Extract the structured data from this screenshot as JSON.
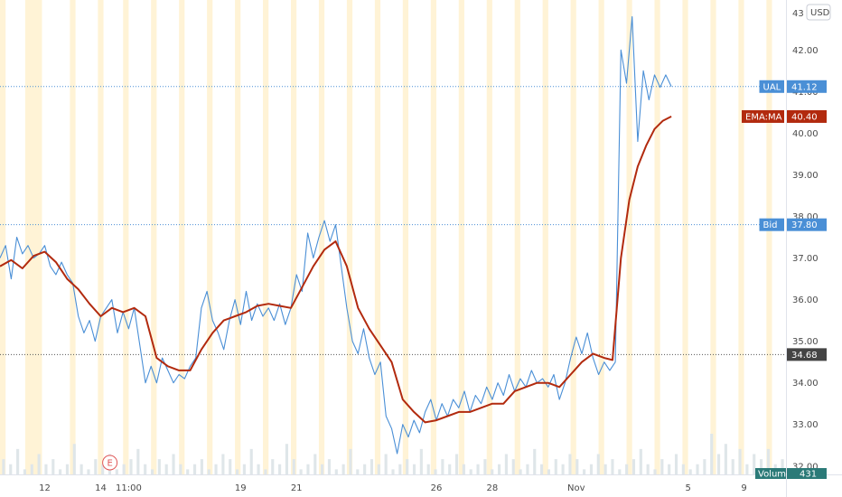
{
  "currency_button": "USD",
  "earnings_marker": "E",
  "chart_data": {
    "type": "line",
    "price_axis": {
      "ylim": [
        31.8,
        43.2
      ],
      "ticks": [
        32.0,
        33.0,
        34.0,
        35.0,
        36.0,
        37.0,
        38.0,
        39.0,
        40.0,
        41.0,
        42.0
      ],
      "top_partial_label": "43"
    },
    "time_axis": {
      "labels": [
        {
          "t": 12,
          "text": "12"
        },
        {
          "t": 14,
          "text": "14"
        },
        {
          "t": 15,
          "text": "11:00"
        },
        {
          "t": 19,
          "text": "19"
        },
        {
          "t": 21,
          "text": "21"
        },
        {
          "t": 26,
          "text": "26"
        },
        {
          "t": 28,
          "text": "28"
        },
        {
          "t": 31,
          "text": "Nov"
        },
        {
          "t": 35,
          "text": "5"
        },
        {
          "t": 37,
          "text": "9"
        }
      ],
      "range": [
        10.4,
        38.5
      ]
    },
    "session_bands": [
      {
        "from": 10.4,
        "to": 10.6
      },
      {
        "from": 11.3,
        "to": 11.9
      },
      {
        "from": 12.9,
        "to": 13.1
      },
      {
        "from": 13.9,
        "to": 14.1
      },
      {
        "from": 14.8,
        "to": 15.0
      },
      {
        "from": 15.8,
        "to": 16.0
      },
      {
        "from": 16.8,
        "to": 17.0
      },
      {
        "from": 17.8,
        "to": 18.0
      },
      {
        "from": 18.8,
        "to": 19.0
      },
      {
        "from": 19.8,
        "to": 20.0
      },
      {
        "from": 20.8,
        "to": 21.0
      },
      {
        "from": 21.8,
        "to": 22.0
      },
      {
        "from": 22.8,
        "to": 23.0
      },
      {
        "from": 23.8,
        "to": 24.0
      },
      {
        "from": 24.8,
        "to": 25.0
      },
      {
        "from": 25.8,
        "to": 26.0
      },
      {
        "from": 26.8,
        "to": 27.0
      },
      {
        "from": 27.8,
        "to": 28.0
      },
      {
        "from": 28.8,
        "to": 29.0
      },
      {
        "from": 29.8,
        "to": 30.0
      },
      {
        "from": 30.8,
        "to": 31.0
      },
      {
        "from": 31.8,
        "to": 32.0
      },
      {
        "from": 32.8,
        "to": 33.0
      },
      {
        "from": 33.8,
        "to": 34.0
      },
      {
        "from": 34.8,
        "to": 35.0
      },
      {
        "from": 35.8,
        "to": 36.0
      },
      {
        "from": 36.8,
        "to": 37.0
      },
      {
        "from": 37.8,
        "to": 38.0
      }
    ],
    "series": [
      {
        "name": "UAL",
        "color": "#4a8fd6",
        "values": [
          [
            10.4,
            37.0
          ],
          [
            10.6,
            37.3
          ],
          [
            10.8,
            36.5
          ],
          [
            11.0,
            37.5
          ],
          [
            11.2,
            37.1
          ],
          [
            11.4,
            37.3
          ],
          [
            11.6,
            37.0
          ],
          [
            11.8,
            37.1
          ],
          [
            12.0,
            37.3
          ],
          [
            12.2,
            36.8
          ],
          [
            12.4,
            36.6
          ],
          [
            12.6,
            36.9
          ],
          [
            12.8,
            36.6
          ],
          [
            13.0,
            36.4
          ],
          [
            13.2,
            35.6
          ],
          [
            13.4,
            35.2
          ],
          [
            13.6,
            35.5
          ],
          [
            13.8,
            35.0
          ],
          [
            14.0,
            35.6
          ],
          [
            14.2,
            35.8
          ],
          [
            14.4,
            36.0
          ],
          [
            14.6,
            35.2
          ],
          [
            14.8,
            35.7
          ],
          [
            15.0,
            35.3
          ],
          [
            15.2,
            35.8
          ],
          [
            15.4,
            34.9
          ],
          [
            15.6,
            34.0
          ],
          [
            15.8,
            34.4
          ],
          [
            16.0,
            34.0
          ],
          [
            16.2,
            34.6
          ],
          [
            16.4,
            34.3
          ],
          [
            16.6,
            34.0
          ],
          [
            16.8,
            34.2
          ],
          [
            17.0,
            34.1
          ],
          [
            17.2,
            34.4
          ],
          [
            17.4,
            34.6
          ],
          [
            17.6,
            35.8
          ],
          [
            17.8,
            36.2
          ],
          [
            18.0,
            35.5
          ],
          [
            18.2,
            35.2
          ],
          [
            18.4,
            34.8
          ],
          [
            18.6,
            35.5
          ],
          [
            18.8,
            36.0
          ],
          [
            19.0,
            35.4
          ],
          [
            19.2,
            36.2
          ],
          [
            19.4,
            35.5
          ],
          [
            19.6,
            35.9
          ],
          [
            19.8,
            35.6
          ],
          [
            20.0,
            35.8
          ],
          [
            20.2,
            35.5
          ],
          [
            20.4,
            35.9
          ],
          [
            20.6,
            35.4
          ],
          [
            20.8,
            35.8
          ],
          [
            21.0,
            36.6
          ],
          [
            21.2,
            36.2
          ],
          [
            21.4,
            37.6
          ],
          [
            21.6,
            37.0
          ],
          [
            21.8,
            37.5
          ],
          [
            22.0,
            37.9
          ],
          [
            22.2,
            37.4
          ],
          [
            22.4,
            37.8
          ],
          [
            22.6,
            36.8
          ],
          [
            22.8,
            35.8
          ],
          [
            23.0,
            35.0
          ],
          [
            23.2,
            34.7
          ],
          [
            23.4,
            35.3
          ],
          [
            23.6,
            34.6
          ],
          [
            23.8,
            34.2
          ],
          [
            24.0,
            34.5
          ],
          [
            24.2,
            33.2
          ],
          [
            24.4,
            32.9
          ],
          [
            24.6,
            32.3
          ],
          [
            24.8,
            33.0
          ],
          [
            25.0,
            32.7
          ],
          [
            25.2,
            33.1
          ],
          [
            25.4,
            32.8
          ],
          [
            25.6,
            33.3
          ],
          [
            25.8,
            33.6
          ],
          [
            26.0,
            33.1
          ],
          [
            26.2,
            33.5
          ],
          [
            26.4,
            33.2
          ],
          [
            26.6,
            33.6
          ],
          [
            26.8,
            33.4
          ],
          [
            27.0,
            33.8
          ],
          [
            27.2,
            33.3
          ],
          [
            27.4,
            33.7
          ],
          [
            27.6,
            33.5
          ],
          [
            27.8,
            33.9
          ],
          [
            28.0,
            33.6
          ],
          [
            28.2,
            34.0
          ],
          [
            28.4,
            33.7
          ],
          [
            28.6,
            34.2
          ],
          [
            28.8,
            33.8
          ],
          [
            29.0,
            34.1
          ],
          [
            29.2,
            33.9
          ],
          [
            29.4,
            34.3
          ],
          [
            29.6,
            34.0
          ],
          [
            29.8,
            34.1
          ],
          [
            30.0,
            33.9
          ],
          [
            30.2,
            34.2
          ],
          [
            30.4,
            33.6
          ],
          [
            30.6,
            34.0
          ],
          [
            30.8,
            34.6
          ],
          [
            31.0,
            35.1
          ],
          [
            31.2,
            34.7
          ],
          [
            31.4,
            35.2
          ],
          [
            31.6,
            34.6
          ],
          [
            31.8,
            34.2
          ],
          [
            32.0,
            34.5
          ],
          [
            32.2,
            34.3
          ],
          [
            32.4,
            34.5
          ],
          [
            32.6,
            42.0
          ],
          [
            32.8,
            41.2
          ],
          [
            33.0,
            42.8
          ],
          [
            33.2,
            39.8
          ],
          [
            33.4,
            41.5
          ],
          [
            33.6,
            40.8
          ],
          [
            33.8,
            41.4
          ],
          [
            34.0,
            41.1
          ],
          [
            34.2,
            41.4
          ],
          [
            34.4,
            41.12
          ]
        ]
      },
      {
        "name": "EMA:MA",
        "color": "#b22a0e",
        "values": [
          [
            10.4,
            36.8
          ],
          [
            10.8,
            36.95
          ],
          [
            11.2,
            36.75
          ],
          [
            11.6,
            37.05
          ],
          [
            12.0,
            37.15
          ],
          [
            12.4,
            36.9
          ],
          [
            12.8,
            36.5
          ],
          [
            13.2,
            36.25
          ],
          [
            13.6,
            35.9
          ],
          [
            14.0,
            35.6
          ],
          [
            14.4,
            35.8
          ],
          [
            14.8,
            35.7
          ],
          [
            15.2,
            35.8
          ],
          [
            15.6,
            35.6
          ],
          [
            16.0,
            34.6
          ],
          [
            16.4,
            34.4
          ],
          [
            16.8,
            34.3
          ],
          [
            17.2,
            34.3
          ],
          [
            17.6,
            34.8
          ],
          [
            18.0,
            35.2
          ],
          [
            18.4,
            35.5
          ],
          [
            18.8,
            35.6
          ],
          [
            19.2,
            35.7
          ],
          [
            19.6,
            35.85
          ],
          [
            20.0,
            35.9
          ],
          [
            20.4,
            35.85
          ],
          [
            20.8,
            35.8
          ],
          [
            21.2,
            36.3
          ],
          [
            21.6,
            36.8
          ],
          [
            22.0,
            37.2
          ],
          [
            22.4,
            37.4
          ],
          [
            22.8,
            36.8
          ],
          [
            23.2,
            35.8
          ],
          [
            23.6,
            35.3
          ],
          [
            24.0,
            34.9
          ],
          [
            24.4,
            34.5
          ],
          [
            24.8,
            33.6
          ],
          [
            25.2,
            33.3
          ],
          [
            25.6,
            33.05
          ],
          [
            26.0,
            33.1
          ],
          [
            26.4,
            33.2
          ],
          [
            26.8,
            33.3
          ],
          [
            27.2,
            33.3
          ],
          [
            27.6,
            33.4
          ],
          [
            28.0,
            33.5
          ],
          [
            28.4,
            33.5
          ],
          [
            28.8,
            33.8
          ],
          [
            29.2,
            33.9
          ],
          [
            29.6,
            34.0
          ],
          [
            30.0,
            34.0
          ],
          [
            30.4,
            33.9
          ],
          [
            30.8,
            34.2
          ],
          [
            31.2,
            34.5
          ],
          [
            31.6,
            34.7
          ],
          [
            32.0,
            34.6
          ],
          [
            32.3,
            34.55
          ],
          [
            32.6,
            37.0
          ],
          [
            32.9,
            38.4
          ],
          [
            33.2,
            39.2
          ],
          [
            33.5,
            39.7
          ],
          [
            33.8,
            40.1
          ],
          [
            34.1,
            40.3
          ],
          [
            34.4,
            40.4
          ]
        ]
      }
    ],
    "horizontal_lines": [
      {
        "name": "UAL",
        "value": 41.12,
        "color": "#4a8fd6",
        "style": "dotted"
      },
      {
        "name": "Bid",
        "value": 37.8,
        "color": "#4a8fd6",
        "style": "dotted"
      },
      {
        "name": "last",
        "value": 34.68,
        "color": "#555555",
        "style": "dotted"
      }
    ],
    "price_badges": [
      {
        "tag": "UAL",
        "value": "41.12",
        "y": 41.12,
        "color": "#4a8fd6"
      },
      {
        "tag": "EMA:MA",
        "value": "40.40",
        "y": 40.4,
        "color": "#b22a0e"
      },
      {
        "tag": "Bid",
        "value": "37.80",
        "y": 37.8,
        "color": "#4a8fd6"
      },
      {
        "tag": "",
        "value": "34.68",
        "y": 34.68,
        "color": "#444444"
      }
    ],
    "volume_badge": {
      "tag": "Volume",
      "value": "431",
      "color": "#2b7a78"
    },
    "volume": {
      "color": "#dfe6e9",
      "values": [
        3,
        2,
        5,
        1,
        2,
        4,
        2,
        3,
        1,
        2,
        6,
        2,
        1,
        3,
        2,
        4,
        1,
        2,
        3,
        5,
        2,
        1,
        3,
        2,
        4,
        2,
        1,
        2,
        3,
        1,
        2,
        4,
        3,
        1,
        2,
        5,
        2,
        1,
        3,
        2,
        6,
        3,
        1,
        2,
        4,
        2,
        3,
        1,
        2,
        5,
        1,
        2,
        3,
        2,
        4,
        1,
        2,
        3,
        2,
        5,
        2,
        1,
        3,
        2,
        4,
        2,
        1,
        2,
        3,
        1,
        2,
        4,
        3,
        1,
        2,
        5,
        2,
        1,
        3,
        2,
        4,
        3,
        1,
        2,
        4,
        2,
        3,
        1,
        2,
        3,
        5,
        2,
        1,
        3,
        2,
        4,
        2,
        1,
        2,
        3,
        8,
        4,
        6,
        3,
        5,
        2,
        4,
        3,
        5,
        2,
        3
      ]
    }
  }
}
